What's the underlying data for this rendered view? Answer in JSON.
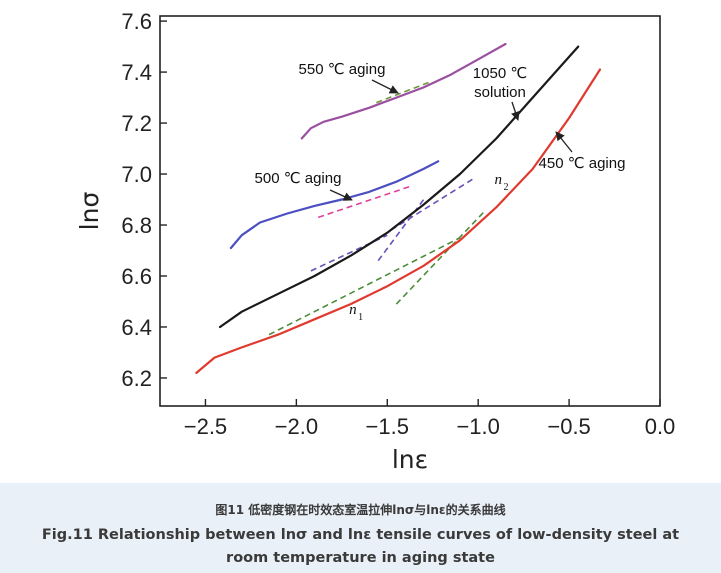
{
  "chart_data": {
    "type": "line",
    "xlabel": "lnε",
    "ylabel": "lnσ",
    "xlim": [
      -2.75,
      0.0
    ],
    "ylim": [
      6.09,
      7.62
    ],
    "x_ticks": [
      -2.5,
      -2.0,
      -1.5,
      -1.0,
      -0.5,
      0.0
    ],
    "x_tick_labels": [
      "−2.5",
      "−2.0",
      "−1.5",
      "−1.0",
      "−0.5",
      "0.0"
    ],
    "y_ticks": [
      6.2,
      6.4,
      6.6,
      6.8,
      7.0,
      7.2,
      7.4,
      7.6
    ],
    "y_tick_labels": [
      "6.2",
      "6.4",
      "6.6",
      "6.8",
      "7.0",
      "7.2",
      "7.4",
      "7.6"
    ],
    "series": [
      {
        "name": "550 ℃ aging",
        "color": "#9b4fa0",
        "style": "solid",
        "x": [
          -1.97,
          -1.92,
          -1.85,
          -1.75,
          -1.6,
          -1.45,
          -1.3,
          -1.15,
          -1.0,
          -0.85
        ],
        "y": [
          7.14,
          7.18,
          7.205,
          7.225,
          7.26,
          7.3,
          7.34,
          7.39,
          7.45,
          7.51
        ]
      },
      {
        "name": "500 ℃ aging",
        "color": "#4b4fc0",
        "style": "solid",
        "x": [
          -2.36,
          -2.3,
          -2.2,
          -2.05,
          -1.9,
          -1.75,
          -1.6,
          -1.45,
          -1.3,
          -1.22
        ],
        "y": [
          6.71,
          6.76,
          6.81,
          6.845,
          6.875,
          6.9,
          6.93,
          6.97,
          7.02,
          7.05
        ]
      },
      {
        "name": "1050 ℃ solution",
        "color": "#1a1a1a",
        "style": "solid",
        "x": [
          -2.42,
          -2.3,
          -2.1,
          -1.9,
          -1.7,
          -1.5,
          -1.3,
          -1.1,
          -0.9,
          -0.7,
          -0.55,
          -0.45
        ],
        "y": [
          6.4,
          6.46,
          6.53,
          6.6,
          6.68,
          6.77,
          6.88,
          7.0,
          7.14,
          7.3,
          7.42,
          7.5
        ]
      },
      {
        "name": "450 ℃ aging",
        "color": "#e03a2f",
        "style": "solid",
        "x": [
          -2.55,
          -2.45,
          -2.3,
          -2.1,
          -1.9,
          -1.7,
          -1.5,
          -1.3,
          -1.1,
          -0.9,
          -0.7,
          -0.5,
          -0.33
        ],
        "y": [
          6.22,
          6.28,
          6.32,
          6.37,
          6.43,
          6.49,
          6.56,
          6.64,
          6.74,
          6.87,
          7.02,
          7.22,
          7.41
        ]
      }
    ],
    "fit_lines": [
      {
        "color": "#6a9a3a",
        "x": [
          -1.56,
          -1.27
        ],
        "y": [
          7.28,
          7.36
        ]
      },
      {
        "color": "#e0409a",
        "x": [
          -1.88,
          -1.38
        ],
        "y": [
          6.83,
          6.95
        ]
      },
      {
        "color": "#6a4fb8",
        "x": [
          -1.92,
          -1.5
        ],
        "y": [
          6.62,
          6.76
        ]
      },
      {
        "color": "#6a4fb8",
        "x": [
          -1.48,
          -1.03
        ],
        "y": [
          6.78,
          6.98
        ]
      },
      {
        "color": "#6a4fb8",
        "x": [
          -1.55,
          -1.3
        ],
        "y": [
          6.66,
          6.9
        ]
      },
      {
        "color": "#4c8c3a",
        "x": [
          -2.15,
          -1.1
        ],
        "y": [
          6.37,
          6.75
        ]
      },
      {
        "color": "#4c8c3a",
        "x": [
          -1.45,
          -0.97
        ],
        "y": [
          6.49,
          6.85
        ]
      }
    ],
    "annotations": [
      {
        "text": "550 ℃ aging",
        "at_x": -1.46,
        "at_y": 7.33
      },
      {
        "text": "500 ℃ aging",
        "at_x": -1.56,
        "at_y": 6.92
      },
      {
        "text": "1050 ℃",
        "at_x": -0.79,
        "at_y": 7.29
      },
      {
        "text": "solution",
        "at_x": -0.79,
        "at_y": 7.29
      },
      {
        "text": "450 ℃ aging",
        "at_x": -0.56,
        "at_y": 7.17
      }
    ],
    "point_labels": [
      {
        "text": "n",
        "sub": "1",
        "x": -1.71,
        "y": 6.45
      },
      {
        "text": "n",
        "sub": "2",
        "x": -0.91,
        "y": 6.96
      }
    ]
  },
  "caption": {
    "cn": "图11 低密度钢在时效态室温拉伸lnσ与lnε的关系曲线",
    "en": "Fig.11 Relationship between lnσ and lnε tensile curves of low-density steel at room temperature in aging state"
  }
}
